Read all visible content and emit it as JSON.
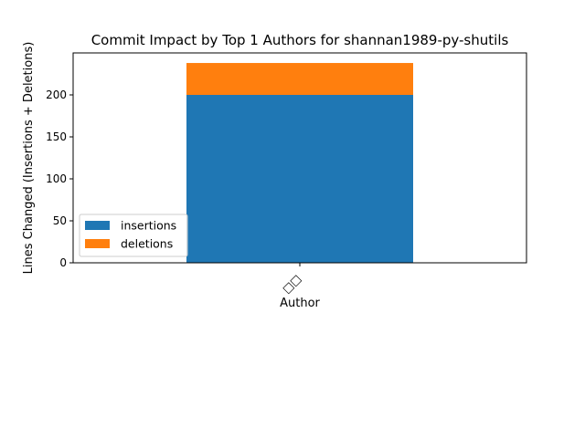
{
  "chart_data": {
    "type": "bar",
    "stacked": true,
    "title": "Commit Impact by Top 1 Authors for shannan1989-py-shutils",
    "xlabel": "Author",
    "ylabel": "Lines Changed (Insertions + Deletions)",
    "categories": [
      "□□"
    ],
    "series": [
      {
        "name": "insertions",
        "values": [
          200
        ],
        "color": "#1f77b4"
      },
      {
        "name": "deletions",
        "values": [
          38
        ],
        "color": "#ff7f0e"
      }
    ],
    "ylim": [
      0,
      250
    ],
    "yticks": [
      0,
      50,
      100,
      150,
      200
    ],
    "grid": false,
    "legend": "lower-left"
  }
}
